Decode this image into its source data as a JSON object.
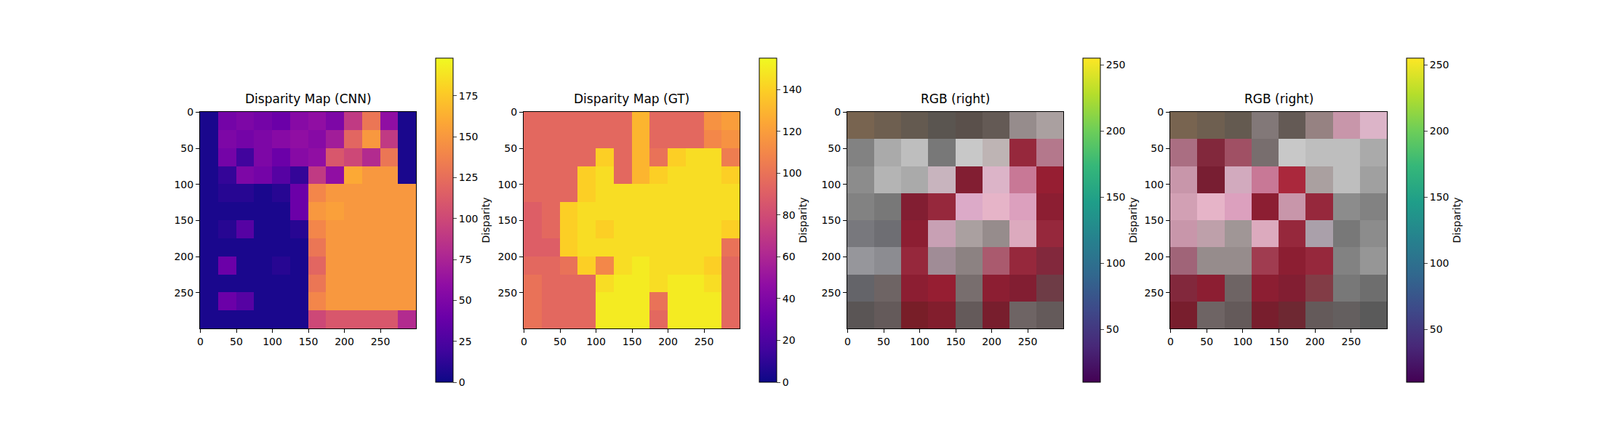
{
  "chart_data": [
    {
      "type": "heatmap",
      "title": "Disparity Map (CNN)",
      "color": "plasma",
      "xlim": [
        -0.5,
        299.5
      ],
      "ylim": [
        299.5,
        -0.5
      ],
      "xticks": [
        0,
        50,
        100,
        150,
        200,
        250
      ],
      "yticks": [
        0,
        50,
        100,
        150,
        200,
        250
      ],
      "cells": [
        [
          5,
          45,
          50,
          45,
          40,
          55,
          60,
          50,
          90,
          130,
          60,
          5
        ],
        [
          5,
          50,
          45,
          50,
          55,
          60,
          55,
          70,
          120,
          150,
          90,
          5
        ],
        [
          5,
          45,
          20,
          50,
          40,
          55,
          60,
          110,
          100,
          80,
          130,
          5
        ],
        [
          5,
          15,
          50,
          45,
          30,
          15,
          90,
          60,
          160,
          150,
          150,
          5
        ],
        [
          5,
          10,
          10,
          5,
          10,
          40,
          140,
          150,
          150,
          150,
          150,
          150
        ],
        [
          5,
          5,
          5,
          5,
          5,
          40,
          150,
          155,
          150,
          150,
          150,
          150
        ],
        [
          5,
          10,
          30,
          5,
          5,
          10,
          140,
          150,
          150,
          150,
          150,
          150
        ],
        [
          5,
          5,
          5,
          5,
          5,
          5,
          130,
          150,
          150,
          150,
          150,
          150
        ],
        [
          5,
          40,
          5,
          5,
          10,
          5,
          120,
          150,
          150,
          150,
          150,
          150
        ],
        [
          5,
          5,
          5,
          5,
          5,
          5,
          130,
          150,
          150,
          150,
          150,
          150
        ],
        [
          5,
          40,
          30,
          5,
          5,
          5,
          140,
          150,
          150,
          150,
          150,
          150
        ],
        [
          5,
          5,
          5,
          5,
          5,
          5,
          100,
          110,
          110,
          110,
          110,
          80
        ]
      ],
      "colorbar": {
        "title": "Disparity",
        "range": [
          0,
          198
        ],
        "ticks": [
          0,
          25,
          50,
          75,
          100,
          125,
          150,
          175
        ]
      }
    },
    {
      "type": "heatmap",
      "title": "Disparity Map (GT)",
      "color": "plasma",
      "xlim": [
        -0.5,
        299.5
      ],
      "ylim": [
        299.5,
        -0.5
      ],
      "xticks": [
        0,
        50,
        100,
        150,
        200,
        250
      ],
      "yticks": [
        0,
        50,
        100,
        150,
        200,
        250
      ],
      "cells": [
        [
          95,
          95,
          95,
          95,
          95,
          95,
          130,
          95,
          95,
          95,
          115,
          120
        ],
        [
          95,
          95,
          95,
          95,
          95,
          95,
          130,
          95,
          95,
          95,
          110,
          115
        ],
        [
          95,
          95,
          95,
          95,
          140,
          95,
          130,
          100,
          140,
          145,
          145,
          105
        ],
        [
          95,
          95,
          95,
          140,
          145,
          95,
          130,
          140,
          145,
          145,
          145,
          140
        ],
        [
          95,
          95,
          95,
          140,
          145,
          145,
          145,
          145,
          145,
          145,
          145,
          145
        ],
        [
          90,
          95,
          140,
          145,
          145,
          145,
          145,
          145,
          145,
          145,
          145,
          145
        ],
        [
          90,
          95,
          140,
          145,
          140,
          145,
          145,
          145,
          145,
          145,
          145,
          140
        ],
        [
          90,
          90,
          140,
          145,
          145,
          145,
          145,
          145,
          145,
          145,
          145,
          100
        ],
        [
          95,
          95,
          100,
          140,
          110,
          145,
          150,
          145,
          145,
          145,
          140,
          95
        ],
        [
          100,
          95,
          95,
          95,
          145,
          150,
          150,
          145,
          150,
          150,
          145,
          95
        ],
        [
          100,
          95,
          95,
          95,
          150,
          150,
          150,
          100,
          150,
          150,
          150,
          95
        ],
        [
          100,
          95,
          95,
          95,
          150,
          150,
          150,
          95,
          150,
          150,
          150,
          95
        ]
      ],
      "colorbar": {
        "title": "Disparity",
        "range": [
          0,
          155
        ],
        "ticks": [
          0,
          20,
          40,
          60,
          80,
          100,
          120,
          140
        ]
      }
    },
    {
      "type": "image",
      "title": "RGB (right)",
      "color": "viridis",
      "xlim": [
        -0.5,
        299.5
      ],
      "ylim": [
        299.5,
        -0.5
      ],
      "xticks": [
        0,
        50,
        100,
        150,
        200,
        250
      ],
      "yticks": [
        0,
        50,
        100,
        150,
        200,
        250
      ],
      "pixels": [
        [
          [
            120,
            100,
            80
          ],
          [
            110,
            95,
            80
          ],
          [
            100,
            90,
            80
          ],
          [
            90,
            85,
            80
          ],
          [
            90,
            80,
            75
          ],
          [
            100,
            90,
            85
          ],
          [
            150,
            140,
            140
          ],
          [
            170,
            160,
            160
          ]
        ],
        [
          [
            130,
            130,
            130
          ],
          [
            170,
            170,
            170
          ],
          [
            190,
            190,
            190
          ],
          [
            120,
            120,
            120
          ],
          [
            200,
            200,
            200
          ],
          [
            190,
            180,
            180
          ],
          [
            150,
            40,
            60
          ],
          [
            180,
            120,
            140
          ]
        ],
        [
          [
            140,
            140,
            140
          ],
          [
            180,
            180,
            180
          ],
          [
            170,
            170,
            170
          ],
          [
            200,
            180,
            190
          ],
          [
            130,
            30,
            50
          ],
          [
            220,
            180,
            200
          ],
          [
            200,
            120,
            150
          ],
          [
            150,
            30,
            50
          ]
        ],
        [
          [
            130,
            130,
            130
          ],
          [
            120,
            120,
            120
          ],
          [
            130,
            30,
            50
          ],
          [
            150,
            40,
            60
          ],
          [
            220,
            170,
            200
          ],
          [
            230,
            180,
            200
          ],
          [
            220,
            160,
            190
          ],
          [
            140,
            30,
            50
          ]
        ],
        [
          [
            120,
            120,
            125
          ],
          [
            110,
            110,
            115
          ],
          [
            140,
            30,
            50
          ],
          [
            200,
            160,
            180
          ],
          [
            170,
            160,
            160
          ],
          [
            150,
            140,
            140
          ],
          [
            220,
            170,
            190
          ],
          [
            150,
            40,
            60
          ]
        ],
        [
          [
            150,
            150,
            155
          ],
          [
            140,
            140,
            145
          ],
          [
            150,
            40,
            60
          ],
          [
            160,
            140,
            150
          ],
          [
            140,
            130,
            130
          ],
          [
            170,
            90,
            110
          ],
          [
            150,
            40,
            60
          ],
          [
            130,
            40,
            60
          ]
        ],
        [
          [
            100,
            100,
            105
          ],
          [
            110,
            100,
            100
          ],
          [
            140,
            30,
            50
          ],
          [
            150,
            30,
            50
          ],
          [
            120,
            110,
            110
          ],
          [
            140,
            30,
            50
          ],
          [
            130,
            30,
            50
          ],
          [
            110,
            60,
            70
          ]
        ],
        [
          [
            90,
            85,
            85
          ],
          [
            100,
            90,
            90
          ],
          [
            120,
            30,
            40
          ],
          [
            130,
            30,
            45
          ],
          [
            100,
            90,
            90
          ],
          [
            120,
            30,
            45
          ],
          [
            110,
            100,
            100
          ],
          [
            100,
            90,
            90
          ]
        ]
      ],
      "colorbar": {
        "title": "Disparity",
        "range": [
          10,
          255
        ],
        "ticks": [
          50,
          100,
          150,
          200,
          250
        ]
      }
    },
    {
      "type": "image",
      "title": "RGB (right)",
      "color": "viridis",
      "xlim": [
        -0.5,
        299.5
      ],
      "ylim": [
        299.5,
        -0.5
      ],
      "xticks": [
        0,
        50,
        100,
        150,
        200,
        250
      ],
      "yticks": [
        0,
        50,
        100,
        150,
        200,
        250
      ],
      "pixels": [
        [
          [
            120,
            100,
            80
          ],
          [
            110,
            95,
            80
          ],
          [
            100,
            90,
            80
          ],
          [
            130,
            120,
            120
          ],
          [
            100,
            90,
            85
          ],
          [
            150,
            130,
            130
          ],
          [
            200,
            150,
            170
          ],
          [
            220,
            180,
            200
          ]
        ],
        [
          [
            170,
            110,
            130
          ],
          [
            130,
            40,
            60
          ],
          [
            160,
            80,
            100
          ],
          [
            120,
            110,
            110
          ],
          [
            200,
            200,
            200
          ],
          [
            190,
            190,
            190
          ],
          [
            190,
            190,
            190
          ],
          [
            170,
            170,
            170
          ]
        ],
        [
          [
            200,
            150,
            170
          ],
          [
            120,
            30,
            50
          ],
          [
            210,
            170,
            190
          ],
          [
            200,
            120,
            150
          ],
          [
            170,
            40,
            60
          ],
          [
            170,
            160,
            160
          ],
          [
            190,
            190,
            190
          ],
          [
            160,
            160,
            160
          ]
        ],
        [
          [
            210,
            160,
            180
          ],
          [
            230,
            180,
            200
          ],
          [
            220,
            160,
            190
          ],
          [
            140,
            30,
            50
          ],
          [
            200,
            150,
            170
          ],
          [
            150,
            40,
            60
          ],
          [
            140,
            140,
            140
          ],
          [
            130,
            130,
            130
          ]
        ],
        [
          [
            200,
            150,
            170
          ],
          [
            190,
            160,
            170
          ],
          [
            160,
            150,
            150
          ],
          [
            220,
            170,
            190
          ],
          [
            150,
            40,
            60
          ],
          [
            170,
            160,
            170
          ],
          [
            120,
            120,
            120
          ],
          [
            140,
            140,
            140
          ]
        ],
        [
          [
            160,
            100,
            120
          ],
          [
            150,
            140,
            140
          ],
          [
            150,
            140,
            140
          ],
          [
            160,
            60,
            80
          ],
          [
            140,
            30,
            50
          ],
          [
            150,
            40,
            60
          ],
          [
            130,
            130,
            130
          ],
          [
            150,
            150,
            150
          ]
        ],
        [
          [
            130,
            40,
            60
          ],
          [
            140,
            30,
            50
          ],
          [
            110,
            100,
            100
          ],
          [
            140,
            30,
            50
          ],
          [
            130,
            30,
            50
          ],
          [
            130,
            60,
            70
          ],
          [
            120,
            120,
            120
          ],
          [
            110,
            110,
            110
          ]
        ],
        [
          [
            120,
            30,
            45
          ],
          [
            110,
            100,
            100
          ],
          [
            100,
            90,
            90
          ],
          [
            120,
            30,
            45
          ],
          [
            110,
            40,
            50
          ],
          [
            100,
            90,
            90
          ],
          [
            100,
            95,
            95
          ],
          [
            90,
            90,
            90
          ]
        ]
      ],
      "colorbar": {
        "title": "Disparity",
        "range": [
          10,
          255
        ],
        "ticks": [
          50,
          100,
          150,
          200,
          250
        ]
      }
    }
  ]
}
